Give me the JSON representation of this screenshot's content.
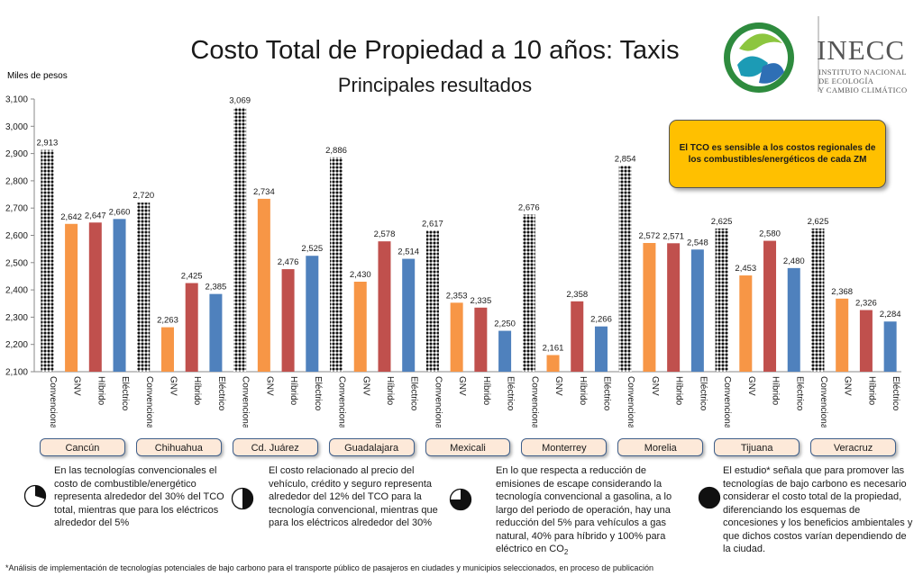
{
  "title": "Costo Total de Propiedad a 10 años: Taxis",
  "subtitle": "Principales resultados",
  "logo": {
    "name": "INECC",
    "line1": "INSTITUTO NACIONAL",
    "line2": "DE ECOLOGÍA",
    "line3": "Y CAMBIO CLIMÁTICO"
  },
  "callout": "El TCO es sensible a los costos regionales de los combustibles/energéticos de cada ZM",
  "chart_data": {
    "type": "bar",
    "ylabel": "Miles de pesos",
    "ylim": [
      2100,
      3100
    ],
    "yticks": [
      "2,100",
      "2,200",
      "2,300",
      "2,400",
      "2,500",
      "2,600",
      "2,700",
      "2,800",
      "2,900",
      "3,000",
      "3,100"
    ],
    "tech_labels": [
      "Convencional",
      "GNV",
      "Híbrido",
      "Eléctrico"
    ],
    "tech_colors": [
      "#111111",
      "#f79646",
      "#c0504d",
      "#4f81bd"
    ],
    "groups": [
      {
        "city": "Cancún",
        "values": [
          2913,
          2642,
          2647,
          2660
        ],
        "labels": [
          "2,913",
          "2,642",
          "2,647",
          "2,660"
        ]
      },
      {
        "city": "Chihuahua",
        "values": [
          2720,
          2263,
          2425,
          2385
        ],
        "labels": [
          "2,720",
          "2,263",
          "2,425",
          "2,385"
        ]
      },
      {
        "city": "Cd. Juárez",
        "values": [
          3069,
          2734,
          2476,
          2525
        ],
        "labels": [
          "3,069",
          "2,734",
          "2,476",
          "2,525"
        ]
      },
      {
        "city": "Guadalajara",
        "values": [
          2886,
          2430,
          2578,
          2514
        ],
        "labels": [
          "2,886",
          "2,430",
          "2,578",
          "2,514"
        ]
      },
      {
        "city": "Mexicali",
        "values": [
          2617,
          2353,
          2335,
          2250
        ],
        "labels": [
          "2,617",
          "2,353",
          "2,335",
          "2,250"
        ]
      },
      {
        "city": "Monterrey",
        "values": [
          2676,
          2161,
          2358,
          2266
        ],
        "labels": [
          "2,676",
          "2,161",
          "2,358",
          "2,266"
        ]
      },
      {
        "city": "Morelia",
        "values": [
          2854,
          2572,
          2571,
          2548
        ],
        "labels": [
          "2,854",
          "2,572",
          "2,571",
          "2,548"
        ]
      },
      {
        "city": "Tijuana",
        "values": [
          2625,
          2453,
          2580,
          2480
        ],
        "labels": [
          "2,625",
          "2,453",
          "2,580",
          "2,480"
        ]
      },
      {
        "city": "Veracruz",
        "values": [
          2625,
          2368,
          2326,
          2284
        ],
        "labels": [
          "2,625",
          "2,368",
          "2,326",
          "2,284"
        ]
      }
    ]
  },
  "notes": [
    {
      "pie_fraction": 0.3,
      "text": "En las tecnologías convencionales el costo de combustible/energético representa alrededor del 30% del TCO total, mientras que para los eléctricos alrededor del 5%"
    },
    {
      "pie_fraction": 0.5,
      "text": "El costo relacionado al precio del vehículo, crédito y seguro representa alrededor del 12% del TCO para la tecnología convencional, mientras que para los eléctricos alrededor del 30%"
    },
    {
      "pie_fraction": 0.75,
      "text_before": "En lo que respecta a reducción de emisiones de escape considerando la tecnología convencional a gasolina, a lo largo del periodo de operación, hay una reducción del 5% para vehículos a gas natural, 40% para híbrido y 100% para eléctrico en CO",
      "text_sub": "2"
    },
    {
      "pie_fraction": 1.0,
      "text": "El estudio* señala que para promover las tecnologías de bajo carbono es necesario considerar el costo total de la propiedad, diferenciando los esquemas de concesiones y los beneficios ambientales y que dichos costos varían dependiendo de la ciudad."
    }
  ],
  "footnote": "*Análisis de implementación de tecnologías potenciales de bajo carbono para el transporte público de pasajeros en ciudades y municipios seleccionados, en proceso de publicación"
}
